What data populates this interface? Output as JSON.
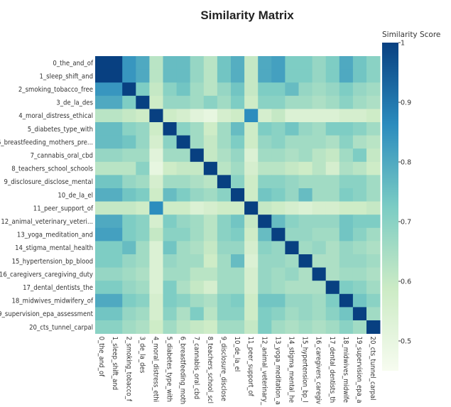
{
  "chart_data": {
    "type": "heatmap",
    "title": "Similarity Matrix",
    "colorbar": {
      "title": "Similarity Score",
      "range": [
        0.45,
        1.0
      ],
      "ticks": [
        0.5,
        0.6,
        0.7,
        0.8,
        0.9,
        1.0
      ],
      "tick_labels": [
        "0.5",
        "0.6",
        "0.7",
        "0.8",
        "0.9",
        "1"
      ],
      "colors": [
        "#f7fcf0",
        "#ccebc5",
        "#7bccc4",
        "#2b8cbe",
        "#084081"
      ]
    },
    "row_labels": [
      "0_the_and_of",
      "1_sleep_shift_and",
      "2_smoking_tobacco_free",
      "3_de_la_des",
      "4_moral_distress_ethical",
      "5_diabetes_type_with",
      "6_breastfeeding_mothers_pre...",
      "7_cannabis_oral_cbd",
      "8_teachers_school_schools",
      "9_disclosure_disclose_mental",
      "10_de_la_el",
      "11_peer_support_of",
      "12_animal_veterinary_veteri...",
      "13_yoga_meditation_and",
      "14_stigma_mental_health",
      "15_hypertension_bp_blood",
      "16_caregivers_caregiving_duty",
      "17_dental_dentists_the",
      "18_midwives_midwifery_of",
      "19_supervision_epa_assessment",
      "20_cts_tunnel_carpal"
    ],
    "column_labels": [
      "0_the_and_of",
      "1_sleep_shift_and",
      "2_smoking_tobacco_f",
      "3_de_la_des",
      "4_moral_distress_ethi",
      "5_diabetes_type_with",
      "6_breastfeeding_moth",
      "7_cannabis_oral_cbd",
      "8_teachers_school_scl",
      "9_disclosure_disclose",
      "10_de_la_el",
      "11_peer_support_of",
      "12_animal_veterinary_",
      "13_yoga_meditation_a",
      "14_stigma_mental_he",
      "15_hypertension_bp_l",
      "16_caregivers_caregiv",
      "17_dental_dentists_th",
      "18_midwives_midwife",
      "19_supervision_epa_a",
      "20_cts_tunnel_carpal"
    ],
    "values": [
      [
        1.0,
        1.0,
        0.84,
        0.8,
        0.62,
        0.76,
        0.76,
        0.68,
        0.62,
        0.74,
        0.79,
        0.6,
        0.8,
        0.82,
        0.72,
        0.72,
        0.68,
        0.72,
        0.8,
        0.74,
        0.7
      ],
      [
        1.0,
        1.0,
        0.84,
        0.8,
        0.62,
        0.76,
        0.76,
        0.68,
        0.62,
        0.74,
        0.79,
        0.6,
        0.8,
        0.82,
        0.72,
        0.72,
        0.68,
        0.72,
        0.8,
        0.74,
        0.7
      ],
      [
        0.84,
        0.84,
        1.0,
        0.72,
        0.6,
        0.7,
        0.74,
        0.66,
        0.62,
        0.68,
        0.74,
        0.6,
        0.72,
        0.72,
        0.76,
        0.68,
        0.66,
        0.68,
        0.72,
        0.68,
        0.66
      ],
      [
        0.8,
        0.8,
        0.72,
        1.0,
        0.58,
        0.68,
        0.68,
        0.66,
        0.7,
        0.66,
        0.72,
        0.58,
        0.7,
        0.7,
        0.66,
        0.66,
        0.64,
        0.66,
        0.7,
        0.66,
        0.64
      ],
      [
        0.62,
        0.62,
        0.6,
        0.58,
        1.0,
        0.58,
        0.56,
        0.52,
        0.5,
        0.56,
        0.58,
        0.86,
        0.56,
        0.6,
        0.54,
        0.54,
        0.54,
        0.54,
        0.56,
        0.56,
        0.58
      ],
      [
        0.76,
        0.76,
        0.7,
        0.68,
        0.58,
        1.0,
        0.7,
        0.66,
        0.58,
        0.66,
        0.76,
        0.58,
        0.72,
        0.7,
        0.74,
        0.68,
        0.66,
        0.72,
        0.72,
        0.7,
        0.66
      ],
      [
        0.76,
        0.76,
        0.74,
        0.68,
        0.56,
        0.7,
        1.0,
        0.66,
        0.6,
        0.66,
        0.72,
        0.58,
        0.68,
        0.7,
        0.66,
        0.66,
        0.66,
        0.64,
        0.7,
        0.64,
        0.62
      ],
      [
        0.68,
        0.68,
        0.66,
        0.66,
        0.52,
        0.66,
        0.66,
        1.0,
        0.6,
        0.64,
        0.68,
        0.54,
        0.66,
        0.66,
        0.64,
        0.66,
        0.62,
        0.6,
        0.66,
        0.72,
        0.6
      ],
      [
        0.62,
        0.62,
        0.62,
        0.7,
        0.5,
        0.58,
        0.6,
        0.6,
        1.0,
        0.62,
        0.66,
        0.56,
        0.62,
        0.62,
        0.6,
        0.58,
        0.62,
        0.56,
        0.64,
        0.62,
        0.58
      ],
      [
        0.74,
        0.74,
        0.68,
        0.66,
        0.56,
        0.66,
        0.66,
        0.64,
        0.62,
        1.0,
        0.7,
        0.58,
        0.7,
        0.7,
        0.68,
        0.66,
        0.66,
        0.66,
        0.7,
        0.7,
        0.66
      ],
      [
        0.79,
        0.79,
        0.74,
        0.72,
        0.58,
        0.76,
        0.72,
        0.68,
        0.66,
        0.7,
        1.0,
        0.58,
        0.74,
        0.72,
        0.68,
        0.76,
        0.66,
        0.66,
        0.72,
        0.7,
        0.66
      ],
      [
        0.6,
        0.6,
        0.6,
        0.58,
        0.86,
        0.58,
        0.58,
        0.54,
        0.56,
        0.58,
        0.58,
        1.0,
        0.6,
        0.58,
        0.56,
        0.54,
        0.56,
        0.56,
        0.58,
        0.58,
        0.6
      ],
      [
        0.8,
        0.8,
        0.72,
        0.7,
        0.56,
        0.72,
        0.68,
        0.66,
        0.62,
        0.7,
        0.74,
        0.6,
        1.0,
        0.76,
        0.7,
        0.68,
        0.68,
        0.68,
        0.74,
        0.72,
        0.72
      ],
      [
        0.82,
        0.82,
        0.72,
        0.7,
        0.6,
        0.7,
        0.7,
        0.66,
        0.62,
        0.7,
        0.72,
        0.58,
        0.76,
        1.0,
        0.68,
        0.68,
        0.66,
        0.66,
        0.74,
        0.7,
        0.66
      ],
      [
        0.72,
        0.72,
        0.76,
        0.66,
        0.54,
        0.74,
        0.66,
        0.64,
        0.6,
        0.68,
        0.68,
        0.56,
        0.7,
        0.68,
        1.0,
        0.66,
        0.68,
        0.64,
        0.68,
        0.66,
        0.64
      ],
      [
        0.72,
        0.72,
        0.68,
        0.66,
        0.54,
        0.68,
        0.66,
        0.66,
        0.58,
        0.66,
        0.76,
        0.54,
        0.68,
        0.68,
        0.66,
        1.0,
        0.64,
        0.64,
        0.68,
        0.68,
        0.66
      ],
      [
        0.68,
        0.68,
        0.66,
        0.64,
        0.54,
        0.66,
        0.66,
        0.62,
        0.62,
        0.66,
        0.66,
        0.56,
        0.68,
        0.66,
        0.68,
        0.64,
        1.0,
        0.64,
        0.66,
        0.66,
        0.64
      ],
      [
        0.72,
        0.72,
        0.68,
        0.66,
        0.54,
        0.72,
        0.64,
        0.6,
        0.56,
        0.66,
        0.66,
        0.56,
        0.68,
        0.66,
        0.64,
        0.64,
        0.64,
        1.0,
        0.72,
        0.7,
        0.66
      ],
      [
        0.8,
        0.8,
        0.72,
        0.7,
        0.56,
        0.72,
        0.7,
        0.66,
        0.64,
        0.7,
        0.72,
        0.58,
        0.74,
        0.74,
        0.68,
        0.68,
        0.66,
        0.72,
        1.0,
        0.74,
        0.7
      ],
      [
        0.74,
        0.74,
        0.68,
        0.66,
        0.56,
        0.7,
        0.64,
        0.72,
        0.62,
        0.7,
        0.7,
        0.58,
        0.72,
        0.7,
        0.66,
        0.68,
        0.66,
        0.7,
        0.74,
        1.0,
        0.66
      ],
      [
        0.7,
        0.7,
        0.66,
        0.64,
        0.58,
        0.66,
        0.62,
        0.6,
        0.58,
        0.66,
        0.66,
        0.6,
        0.72,
        0.66,
        0.64,
        0.66,
        0.64,
        0.66,
        0.7,
        0.66,
        1.0
      ]
    ]
  }
}
